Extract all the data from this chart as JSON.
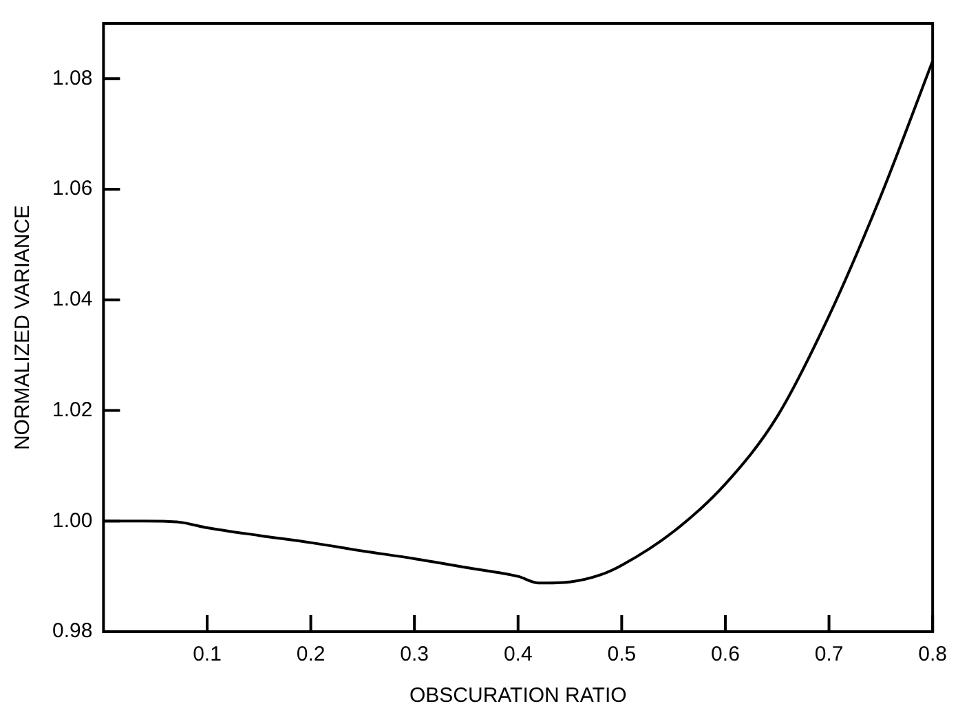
{
  "chart_data": {
    "type": "line",
    "xlabel": "OBSCURATION RATIO",
    "ylabel": "NORMALIZED VARIANCE",
    "x": [
      0,
      0.04,
      0.073,
      0.1,
      0.15,
      0.2,
      0.25,
      0.3,
      0.35,
      0.4,
      0.42,
      0.45,
      0.48,
      0.5,
      0.55,
      0.6,
      0.65,
      0.7,
      0.75,
      0.8
    ],
    "series": [
      {
        "color": "#000000",
        "values": [
          1.0,
          1.0,
          0.9998,
          0.9988,
          0.9974,
          0.9961,
          0.9946,
          0.9932,
          0.9916,
          0.99,
          0.9888,
          0.989,
          0.9903,
          0.992,
          0.9981,
          1.0067,
          1.0189,
          1.0371,
          1.0588,
          1.0832
        ]
      }
    ],
    "xlim": [
      0,
      0.8
    ],
    "xticks": [
      0.1,
      0.2,
      0.3,
      0.4,
      0.5,
      0.6,
      0.7,
      0.8
    ],
    "ylim": [
      0.98,
      1.09
    ],
    "yticks": [
      {
        "value": 0.98,
        "label": "0.98"
      },
      {
        "value": 1,
        "label": "1.00"
      },
      {
        "value": 1.02,
        "label": "1.02"
      },
      {
        "value": 1.04,
        "label": "1.04"
      },
      {
        "value": 1.06,
        "label": "1.06"
      },
      {
        "value": 1.08,
        "label": "1.08"
      }
    ],
    "grid": false,
    "legend": false,
    "marker": "none",
    "line_style": "solid"
  }
}
